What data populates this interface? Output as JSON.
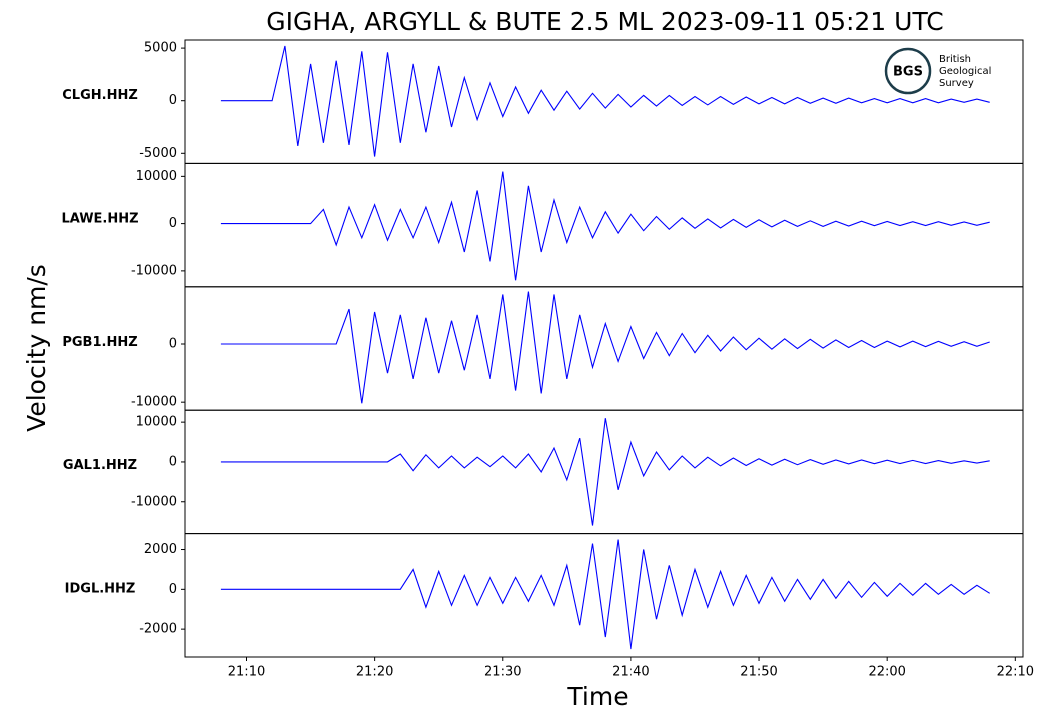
{
  "chart_data": {
    "type": "line",
    "title": "GIGHA, ARGYLL & BUTE 2.5 ML   2023-09-11 05:21 UTC",
    "x_label": "Time",
    "y_label": "Velocity nm/s",
    "logo": {
      "abbreviation": "BGS",
      "lines": [
        "British",
        "Geological",
        "Survey"
      ]
    },
    "x": [
      1268,
      1269,
      1270,
      1271,
      1272,
      1273,
      1274,
      1275,
      1276,
      1277,
      1278,
      1279,
      1280,
      1281,
      1282,
      1283,
      1284,
      1285,
      1286,
      1287,
      1288,
      1289,
      1290,
      1291,
      1292,
      1293,
      1294,
      1295,
      1296,
      1297,
      1298,
      1299,
      1300,
      1301,
      1302,
      1303,
      1304,
      1305,
      1306,
      1307,
      1308,
      1309,
      1310,
      1311,
      1312,
      1313,
      1314,
      1315,
      1316,
      1317,
      1318,
      1319,
      1320,
      1321,
      1322,
      1323,
      1324,
      1325,
      1326,
      1327,
      1328
    ],
    "xlim": [
      1265.2,
      1330.6
    ],
    "xticks": [
      {
        "value": 1270,
        "label": "21:10"
      },
      {
        "value": 1280,
        "label": "21:20"
      },
      {
        "value": 1290,
        "label": "21:30"
      },
      {
        "value": 1300,
        "label": "21:40"
      },
      {
        "value": 1310,
        "label": "21:50"
      },
      {
        "value": 1320,
        "label": "22:00"
      },
      {
        "value": 1330,
        "label": "22:10"
      }
    ],
    "series": [
      {
        "name": "CLGH.HHZ",
        "color": "#0000ff",
        "ylim": [
          -5960,
          5770
        ],
        "yticks": [
          5000,
          0,
          -5000
        ],
        "values": [
          0,
          0,
          0,
          0,
          0,
          5200,
          -4300,
          3500,
          -4000,
          3800,
          -4200,
          4700,
          -5300,
          4600,
          -4000,
          3500,
          -3000,
          3300,
          -2500,
          2200,
          -1800,
          1700,
          -1500,
          1300,
          -1200,
          1000,
          -900,
          900,
          -800,
          700,
          -700,
          600,
          -600,
          500,
          -500,
          500,
          -450,
          400,
          -400,
          400,
          -350,
          350,
          -300,
          300,
          -300,
          300,
          -250,
          250,
          -250,
          250,
          -200,
          200,
          -200,
          200,
          -200,
          200,
          -200,
          150,
          -150,
          150,
          -150
        ]
      },
      {
        "name": "LAWE.HHZ",
        "color": "#0000ff",
        "ylim": [
          -13370,
          12740
        ],
        "yticks": [
          10000,
          0,
          -10000
        ],
        "values": [
          0,
          0,
          0,
          0,
          0,
          0,
          0,
          0,
          3000,
          -4500,
          3500,
          -3000,
          4000,
          -3500,
          3000,
          -3000,
          3500,
          -4000,
          4500,
          -6000,
          7000,
          -8000,
          11000,
          -12000,
          8000,
          -6000,
          5000,
          -4000,
          3500,
          -3000,
          2500,
          -2000,
          2000,
          -1500,
          1500,
          -1200,
          1200,
          -1000,
          1000,
          -900,
          900,
          -800,
          800,
          -700,
          700,
          -600,
          600,
          -600,
          500,
          -500,
          500,
          -450,
          450,
          -400,
          400,
          -400,
          400,
          -350,
          350,
          -350,
          300
        ]
      },
      {
        "name": "PGB1.HHZ",
        "color": "#0000ff",
        "ylim": [
          -11380,
          9830
        ],
        "yticks": [
          0,
          -10000
        ],
        "values": [
          0,
          0,
          0,
          0,
          0,
          0,
          0,
          0,
          0,
          0,
          6000,
          -10200,
          5500,
          -5000,
          5000,
          -6000,
          4500,
          -5000,
          4000,
          -4500,
          5000,
          -6000,
          8500,
          -8000,
          9000,
          -8500,
          8500,
          -6000,
          5000,
          -4000,
          3500,
          -3000,
          3000,
          -2500,
          2000,
          -2000,
          1800,
          -1500,
          1500,
          -1200,
          1200,
          -1000,
          1000,
          -900,
          900,
          -800,
          800,
          -700,
          700,
          -600,
          600,
          -600,
          500,
          -500,
          500,
          -450,
          450,
          -400,
          400,
          -400,
          350
        ]
      },
      {
        "name": "GAL1.HHZ",
        "color": "#0000ff",
        "ylim": [
          -18000,
          13000
        ],
        "yticks": [
          10000,
          0,
          -10000
        ],
        "values": [
          0,
          0,
          0,
          0,
          0,
          0,
          0,
          0,
          0,
          0,
          0,
          0,
          0,
          0,
          2000,
          -2200,
          1800,
          -1500,
          1500,
          -1500,
          1200,
          -1200,
          1500,
          -1500,
          2000,
          -2500,
          3500,
          -4500,
          6000,
          -16000,
          11000,
          -7000,
          5000,
          -3500,
          2500,
          -2000,
          1500,
          -1500,
          1200,
          -1000,
          1000,
          -900,
          800,
          -800,
          700,
          -700,
          600,
          -600,
          500,
          -500,
          500,
          -450,
          450,
          -400,
          400,
          -400,
          350,
          -350,
          300,
          -300,
          300
        ]
      },
      {
        "name": "IDGL.HHZ",
        "color": "#0000ff",
        "ylim": [
          -3400,
          2800
        ],
        "yticks": [
          2000,
          0,
          -2000
        ],
        "values": [
          0,
          0,
          0,
          0,
          0,
          0,
          0,
          0,
          0,
          0,
          0,
          0,
          0,
          0,
          0,
          1000,
          -900,
          900,
          -800,
          700,
          -800,
          600,
          -700,
          600,
          -600,
          700,
          -800,
          1200,
          -1800,
          2300,
          -2400,
          2500,
          -3000,
          2000,
          -1500,
          1200,
          -1300,
          1000,
          -900,
          900,
          -800,
          700,
          -700,
          600,
          -600,
          500,
          -500,
          500,
          -450,
          400,
          -400,
          350,
          -350,
          300,
          -300,
          300,
          -250,
          250,
          -250,
          200,
          -200
        ]
      }
    ]
  }
}
